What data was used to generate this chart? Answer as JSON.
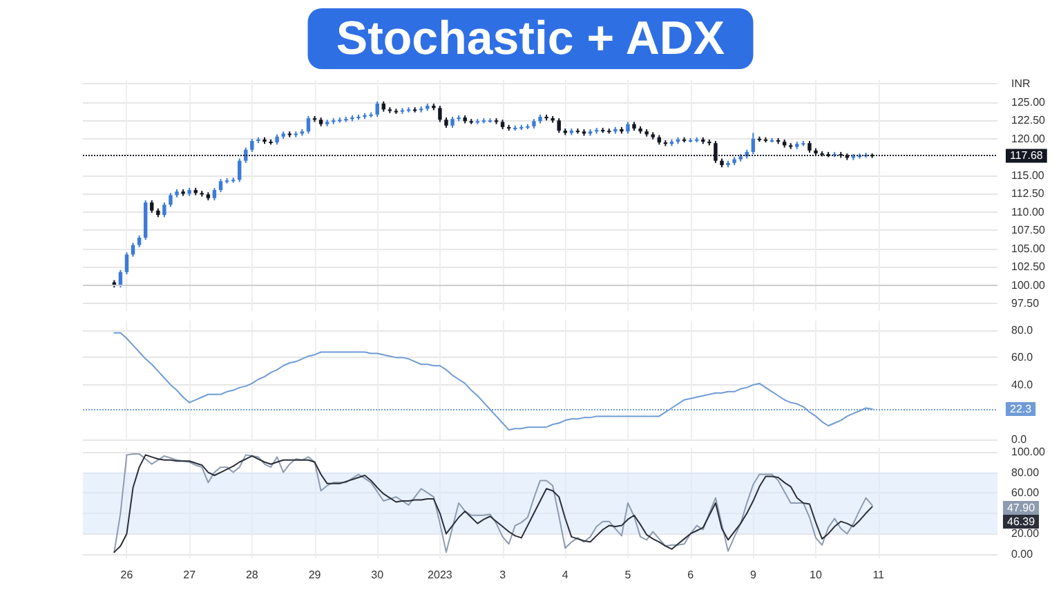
{
  "chart_data": [
    {
      "type": "candlestick",
      "title": "Stochastic + ADX",
      "categories": [
        null,
        null,
        null,
        null,
        null,
        null,
        null,
        "26",
        null,
        null,
        null,
        null,
        null,
        null,
        null,
        null,
        null,
        "27",
        null,
        null,
        null,
        null,
        null,
        null,
        null,
        null,
        null,
        "28",
        null,
        null,
        null,
        null,
        null,
        null,
        null,
        null,
        null,
        "29",
        null,
        null,
        null,
        null,
        null,
        null,
        null,
        null,
        null,
        "30",
        null,
        null,
        null,
        null,
        null,
        null,
        null,
        null,
        null,
        "2023",
        null,
        null,
        null,
        null,
        null,
        null,
        null,
        null,
        null,
        "3",
        null,
        null,
        null,
        null,
        null,
        null,
        null,
        null,
        null,
        "4",
        null,
        null,
        null,
        null,
        null,
        null,
        null,
        null,
        null,
        "5",
        null,
        null,
        null,
        null,
        null,
        null,
        null,
        null,
        null,
        "6",
        null,
        null,
        null,
        null,
        null,
        null,
        null,
        null,
        null,
        "9",
        null,
        null,
        null,
        null,
        null,
        null,
        null,
        null,
        null,
        "10",
        null,
        null,
        null,
        null,
        null,
        null,
        null,
        null,
        null,
        "11",
        null,
        null,
        null,
        null,
        null,
        null,
        null,
        null,
        null,
        null,
        null,
        null,
        null,
        null,
        null,
        null,
        null,
        null,
        null
      ],
      "ohlc": [
        null,
        null,
        null,
        null,
        null,
        [
          100.4,
          100.7,
          99.7,
          100.0
        ],
        [
          100.0,
          102.1,
          99.7,
          101.8
        ],
        [
          101.8,
          104.5,
          101.5,
          104.2
        ],
        [
          104.2,
          105.8,
          103.9,
          105.5
        ],
        [
          105.5,
          106.8,
          105.2,
          106.5
        ],
        [
          106.5,
          111.6,
          106.2,
          111.3
        ],
        [
          111.3,
          111.6,
          109.9,
          110.2
        ],
        [
          110.2,
          110.5,
          109.3,
          109.6
        ],
        [
          109.6,
          111.3,
          109.3,
          111.0
        ],
        [
          111.0,
          112.6,
          110.7,
          112.3
        ],
        [
          112.3,
          113.1,
          112.0,
          112.8
        ],
        [
          112.8,
          113.1,
          112.2,
          112.5
        ],
        [
          112.5,
          113.3,
          112.2,
          113.0
        ],
        [
          113.0,
          113.3,
          112.3,
          112.6
        ],
        [
          112.6,
          112.9,
          112.1,
          112.4
        ],
        [
          112.4,
          112.7,
          111.6,
          111.9
        ],
        [
          111.9,
          113.3,
          111.6,
          113.0
        ],
        [
          113.0,
          114.5,
          112.7,
          114.2
        ],
        [
          114.2,
          114.6,
          113.9,
          114.3
        ],
        [
          114.3,
          114.7,
          114.0,
          114.4
        ],
        [
          114.4,
          117.3,
          114.1,
          117.0
        ],
        [
          117.0,
          118.8,
          116.7,
          118.5
        ],
        [
          118.5,
          120.0,
          118.2,
          119.7
        ],
        [
          119.7,
          120.2,
          119.4,
          119.9
        ],
        [
          119.9,
          120.2,
          119.3,
          119.6
        ],
        [
          119.6,
          119.9,
          119.2,
          119.5
        ],
        [
          119.5,
          120.6,
          119.2,
          120.3
        ],
        [
          120.3,
          121.0,
          120.0,
          120.7
        ],
        [
          120.7,
          121.0,
          120.2,
          120.5
        ],
        [
          120.5,
          121.0,
          120.2,
          120.7
        ],
        [
          120.7,
          121.3,
          120.4,
          121.0
        ],
        [
          121.0,
          123.1,
          120.7,
          122.8
        ],
        [
          122.8,
          123.1,
          122.3,
          122.6
        ],
        [
          122.6,
          122.9,
          121.7,
          122.0
        ],
        [
          122.0,
          122.6,
          121.7,
          122.3
        ],
        [
          122.3,
          122.8,
          122.0,
          122.5
        ],
        [
          122.5,
          122.9,
          122.2,
          122.6
        ],
        [
          122.6,
          123.0,
          122.3,
          122.7
        ],
        [
          122.7,
          123.2,
          122.4,
          122.9
        ],
        [
          122.9,
          123.3,
          122.6,
          123.0
        ],
        [
          123.0,
          123.5,
          122.7,
          123.2
        ],
        [
          123.2,
          123.6,
          122.9,
          123.3
        ],
        [
          123.3,
          125.1,
          123.0,
          124.8
        ],
        [
          124.8,
          125.1,
          123.7,
          124.0
        ],
        [
          124.0,
          124.3,
          123.5,
          123.8
        ],
        [
          123.8,
          124.1,
          123.4,
          123.7
        ],
        [
          123.7,
          124.2,
          123.4,
          123.9
        ],
        [
          123.9,
          124.3,
          123.6,
          124.0
        ],
        [
          124.0,
          124.3,
          123.6,
          123.9
        ],
        [
          123.9,
          124.4,
          123.6,
          124.1
        ],
        [
          124.1,
          124.8,
          123.8,
          124.5
        ],
        [
          124.5,
          124.8,
          123.9,
          124.2
        ],
        [
          124.2,
          124.5,
          122.3,
          122.6
        ],
        [
          122.6,
          122.9,
          121.5,
          121.8
        ],
        [
          121.8,
          123.0,
          121.5,
          122.7
        ],
        [
          122.7,
          123.2,
          122.4,
          122.9
        ],
        [
          122.9,
          123.2,
          122.1,
          122.4
        ],
        [
          122.4,
          122.7,
          122.0,
          122.3
        ],
        [
          122.3,
          122.7,
          122.0,
          122.4
        ],
        [
          122.4,
          122.8,
          122.1,
          122.5
        ],
        [
          122.5,
          122.8,
          122.2,
          122.5
        ],
        [
          122.5,
          122.8,
          122.0,
          122.3
        ],
        [
          122.3,
          122.6,
          121.3,
          121.6
        ],
        [
          121.6,
          121.9,
          121.1,
          121.4
        ],
        [
          121.4,
          121.8,
          121.1,
          121.5
        ],
        [
          121.5,
          121.9,
          121.2,
          121.6
        ],
        [
          121.6,
          122.0,
          121.3,
          121.7
        ],
        [
          121.7,
          122.7,
          121.4,
          122.4
        ],
        [
          122.4,
          123.3,
          122.1,
          123.0
        ],
        [
          123.0,
          123.3,
          122.5,
          122.8
        ],
        [
          122.8,
          123.1,
          122.2,
          122.5
        ],
        [
          122.5,
          122.8,
          120.8,
          121.1
        ],
        [
          121.1,
          121.4,
          120.5,
          120.8
        ],
        [
          120.8,
          121.4,
          120.5,
          121.1
        ],
        [
          121.1,
          121.4,
          120.7,
          121.0
        ],
        [
          121.0,
          121.3,
          120.4,
          120.7
        ],
        [
          120.7,
          121.3,
          120.4,
          121.0
        ],
        [
          121.0,
          121.5,
          120.7,
          121.2
        ],
        [
          121.2,
          121.5,
          120.8,
          121.1
        ],
        [
          121.1,
          121.4,
          120.7,
          121.0
        ],
        [
          121.0,
          121.6,
          120.7,
          121.3
        ],
        [
          121.3,
          121.6,
          120.7,
          121.0
        ],
        [
          121.0,
          122.3,
          120.7,
          122.0
        ],
        [
          122.0,
          122.3,
          121.1,
          121.4
        ],
        [
          121.4,
          121.7,
          120.7,
          121.0
        ],
        [
          121.0,
          121.3,
          120.3,
          120.6
        ],
        [
          120.6,
          120.9,
          119.9,
          120.2
        ],
        [
          120.2,
          120.5,
          119.2,
          119.5
        ],
        [
          119.5,
          119.8,
          119.0,
          119.3
        ],
        [
          119.3,
          119.9,
          119.0,
          119.6
        ],
        [
          119.6,
          120.2,
          119.3,
          119.9
        ],
        [
          119.9,
          120.2,
          119.5,
          119.8
        ],
        [
          119.8,
          120.1,
          119.5,
          119.8
        ],
        [
          119.8,
          120.2,
          119.5,
          119.9
        ],
        [
          119.9,
          120.2,
          119.3,
          119.6
        ],
        [
          119.6,
          119.9,
          119.1,
          119.4
        ],
        [
          119.4,
          119.7,
          116.7,
          117.0
        ],
        [
          117.0,
          117.3,
          116.1,
          116.4
        ],
        [
          116.4,
          117.0,
          116.1,
          116.7
        ],
        [
          116.7,
          117.5,
          116.4,
          117.2
        ],
        [
          117.2,
          117.9,
          116.9,
          117.6
        ],
        [
          117.6,
          118.5,
          117.3,
          118.2
        ],
        [
          118.2,
          120.8,
          117.9,
          120.0
        ],
        [
          120.0,
          120.3,
          119.6,
          119.9
        ],
        [
          119.9,
          120.2,
          119.5,
          119.8
        ],
        [
          119.8,
          120.1,
          119.5,
          119.8
        ],
        [
          119.8,
          120.1,
          119.3,
          119.6
        ],
        [
          119.6,
          119.9,
          118.8,
          119.1
        ],
        [
          119.1,
          119.4,
          118.6,
          118.9
        ],
        [
          118.9,
          119.6,
          118.6,
          119.3
        ],
        [
          119.3,
          119.7,
          119.0,
          119.4
        ],
        [
          119.4,
          119.7,
          118.1,
          118.4
        ],
        [
          118.4,
          118.7,
          117.7,
          118.0
        ],
        [
          118.0,
          118.3,
          117.6,
          117.9
        ],
        [
          117.9,
          118.2,
          117.5,
          117.8
        ],
        [
          117.8,
          118.2,
          117.5,
          117.9
        ],
        [
          117.9,
          118.2,
          117.4,
          117.7
        ],
        [
          117.7,
          118.0,
          117.1,
          117.4
        ],
        [
          117.4,
          117.9,
          117.1,
          117.6
        ],
        [
          117.6,
          118.0,
          117.3,
          117.7
        ],
        [
          117.7,
          118.1,
          117.4,
          117.8
        ],
        [
          117.8,
          118.0,
          117.38,
          117.68
        ],
        null,
        null,
        null,
        null,
        null,
        null,
        null,
        null,
        null,
        null,
        null,
        null,
        null,
        null,
        null,
        null,
        null,
        null,
        null,
        null
      ],
      "colors": [
        null,
        null,
        null,
        null,
        null,
        "#131722",
        "#3d7bd9",
        "#3d7bd9",
        "#3d7bd9",
        "#3d7bd9",
        "#3d7bd9",
        "#131722",
        "#131722",
        "#3d7bd9",
        "#3d7bd9",
        "#3d7bd9",
        "#131722",
        "#3d7bd9",
        "#131722",
        "#131722",
        "#131722",
        "#3d7bd9",
        "#3d7bd9",
        "#3d7bd9",
        "#3d7bd9",
        "#3d7bd9",
        "#3d7bd9",
        "#3d7bd9",
        "#3d7bd9",
        "#131722",
        "#131722",
        "#3d7bd9",
        "#3d7bd9",
        "#131722",
        "#3d7bd9",
        "#3d7bd9",
        "#3d7bd9",
        "#131722",
        "#131722",
        "#3d7bd9",
        "#3d7bd9",
        "#3d7bd9",
        "#3d7bd9",
        "#3d7bd9",
        "#3d7bd9",
        "#3d7bd9",
        "#3d7bd9",
        "#3d7bd9",
        "#131722",
        "#131722",
        "#131722",
        "#3d7bd9",
        "#3d7bd9",
        "#131722",
        "#3d7bd9",
        "#3d7bd9",
        "#131722",
        "#131722",
        "#131722",
        "#3d7bd9",
        "#3d7bd9",
        "#131722",
        "#131722",
        "#3d7bd9",
        "#3d7bd9",
        "#3d7bd9",
        "#131722",
        "#131722",
        "#131722",
        "#3d7bd9",
        "#3d7bd9",
        "#3d7bd9",
        "#3d7bd9",
        "#3d7bd9",
        "#131722",
        "#131722",
        "#131722",
        "#131722",
        "#3d7bd9",
        "#131722",
        "#131722",
        "#3d7bd9",
        "#3d7bd9",
        "#131722",
        "#131722",
        "#3d7bd9",
        "#131722",
        "#3d7bd9",
        "#131722",
        "#131722",
        "#131722",
        "#131722",
        "#131722",
        "#131722",
        "#3d7bd9",
        "#3d7bd9",
        "#131722",
        "#3d7bd9",
        "#3d7bd9",
        "#131722",
        "#131722",
        "#131722",
        "#131722",
        "#3d7bd9",
        "#3d7bd9",
        "#3d7bd9",
        "#3d7bd9",
        "#3d7bd9",
        "#131722",
        "#131722",
        "#3d7bd9",
        "#131722",
        "#131722",
        "#131722",
        "#3d7bd9",
        "#3d7bd9",
        "#131722",
        "#131722",
        "#131722",
        "#131722",
        "#3d7bd9",
        "#131722",
        "#131722",
        "#3d7bd9",
        "#3d7bd9",
        "#3d7bd9",
        "#131722",
        null,
        null,
        null,
        null,
        null,
        null,
        null,
        null,
        null,
        null,
        null,
        null,
        null,
        null,
        null,
        null,
        null,
        null,
        null,
        null
      ],
      "ylim": [
        96.5,
        128
      ],
      "yticks": [
        {
          "value": 97.5,
          "label": "97.50"
        },
        {
          "value": 100,
          "label": "100.00"
        },
        {
          "value": 102.5,
          "label": "102.50"
        },
        {
          "value": 105,
          "label": "105.00"
        },
        {
          "value": 107.5,
          "label": "107.50"
        },
        {
          "value": 110,
          "label": "110.00"
        },
        {
          "value": 112.5,
          "label": "112.50"
        },
        {
          "value": 115,
          "label": "115.00"
        },
        {
          "value": 120,
          "label": "120.00"
        },
        {
          "value": 122.5,
          "label": "122.50"
        },
        {
          "value": 125,
          "label": "125.00"
        },
        {
          "value": 127.5,
          "label": "INR"
        }
      ],
      "ref_lines": [
        {
          "axis": "y",
          "value": 100,
          "color": "#cccccc",
          "line_style": "solid"
        },
        {
          "axis": "y",
          "value": 117.68,
          "label": "117.68",
          "color": "#131722",
          "line_style": "dotted"
        }
      ],
      "grid": true,
      "tick_labels": "y"
    },
    {
      "type": "line",
      "categories": [
        null,
        null,
        null,
        null,
        null,
        null,
        null,
        "26",
        null,
        null,
        null,
        null,
        null,
        null,
        null,
        null,
        null,
        "27",
        null,
        null,
        null,
        null,
        null,
        null,
        null,
        null,
        null,
        "28",
        null,
        null,
        null,
        null,
        null,
        null,
        null,
        null,
        null,
        "29",
        null,
        null,
        null,
        null,
        null,
        null,
        null,
        null,
        null,
        "30",
        null,
        null,
        null,
        null,
        null,
        null,
        null,
        null,
        null,
        "2023",
        null,
        null,
        null,
        null,
        null,
        null,
        null,
        null,
        null,
        "3",
        null,
        null,
        null,
        null,
        null,
        null,
        null,
        null,
        null,
        "4",
        null,
        null,
        null,
        null,
        null,
        null,
        null,
        null,
        null,
        "5",
        null,
        null,
        null,
        null,
        null,
        null,
        null,
        null,
        null,
        "6",
        null,
        null,
        null,
        null,
        null,
        null,
        null,
        null,
        null,
        "9",
        null,
        null,
        null,
        null,
        null,
        null,
        null,
        null,
        null,
        "10",
        null,
        null,
        null,
        null,
        null,
        null,
        null,
        null,
        null,
        "11",
        null,
        null,
        null,
        null,
        null,
        null,
        null,
        null,
        null,
        null,
        null,
        null,
        null,
        null,
        null,
        null,
        null,
        null,
        null
      ],
      "values": [
        null,
        null,
        null,
        null,
        null,
        78,
        78,
        74,
        69,
        64,
        59,
        55,
        50,
        45,
        40,
        36,
        31,
        27,
        29,
        31,
        33,
        33,
        33,
        35,
        36,
        38,
        39,
        41,
        44,
        46,
        49,
        51,
        54,
        56,
        57,
        59,
        61,
        62,
        64,
        64,
        64,
        64,
        64,
        64,
        64,
        64,
        63,
        63,
        62,
        61,
        60,
        60,
        59,
        57,
        55,
        55,
        54,
        54,
        51,
        47,
        44,
        41,
        36,
        32,
        27,
        22,
        17,
        12,
        7,
        8,
        8,
        9,
        9,
        9,
        9,
        11,
        12,
        14,
        15,
        15,
        16,
        16,
        17,
        17,
        17,
        17,
        17,
        17,
        17,
        17,
        17,
        17,
        17,
        20,
        23,
        26,
        29,
        30,
        31,
        32,
        33,
        34,
        34,
        35,
        35,
        37,
        38,
        40,
        41,
        38,
        35,
        32,
        29,
        27,
        26,
        24,
        20,
        17,
        13,
        10,
        12,
        14,
        17,
        19,
        21,
        23,
        22.3,
        null,
        null,
        null,
        null,
        null,
        null,
        null,
        null,
        null,
        null,
        null,
        null,
        null,
        null,
        null,
        null,
        null,
        null,
        null,
        null
      ],
      "color": "#6f9bd6",
      "marker": "none",
      "line_style": "solid",
      "ylim": [
        0,
        87
      ],
      "yticks": [
        {
          "value": 0,
          "label": "0.0"
        },
        {
          "value": 40,
          "label": "40.0"
        },
        {
          "value": 60,
          "label": "60.0"
        },
        {
          "value": 80,
          "label": "80.0"
        }
      ],
      "ref_lines": [
        {
          "axis": "y",
          "value": 22.3,
          "label": "22.3",
          "color": "#6f9bd6",
          "line_style": "dotted"
        }
      ],
      "grid": true,
      "tick_labels": "y"
    },
    {
      "type": "line",
      "categories": [
        null,
        null,
        null,
        null,
        null,
        null,
        null,
        "26",
        null,
        null,
        null,
        null,
        null,
        null,
        null,
        null,
        null,
        "27",
        null,
        null,
        null,
        null,
        null,
        null,
        null,
        null,
        null,
        "28",
        null,
        null,
        null,
        null,
        null,
        null,
        null,
        null,
        null,
        "29",
        null,
        null,
        null,
        null,
        null,
        null,
        null,
        null,
        null,
        "30",
        null,
        null,
        null,
        null,
        null,
        null,
        null,
        null,
        null,
        "2023",
        null,
        null,
        null,
        null,
        null,
        null,
        null,
        null,
        null,
        "3",
        null,
        null,
        null,
        null,
        null,
        null,
        null,
        null,
        null,
        "4",
        null,
        null,
        null,
        null,
        null,
        null,
        null,
        null,
        null,
        "5",
        null,
        null,
        null,
        null,
        null,
        null,
        null,
        null,
        null,
        "6",
        null,
        null,
        null,
        null,
        null,
        null,
        null,
        null,
        null,
        "9",
        null,
        null,
        null,
        null,
        null,
        null,
        null,
        null,
        null,
        "10",
        null,
        null,
        null,
        null,
        null,
        null,
        null,
        null,
        null,
        "11",
        null,
        null,
        null,
        null,
        null,
        null,
        null,
        null,
        null,
        null,
        null,
        null,
        null,
        null,
        null,
        null,
        null,
        null,
        null
      ],
      "series": [
        {
          "color": "#8c9bb0",
          "values": [
            null,
            null,
            null,
            null,
            null,
            2,
            40,
            97,
            98,
            98,
            93,
            88,
            92,
            96,
            94,
            92,
            91,
            90,
            87,
            85,
            70,
            80,
            85,
            85,
            80,
            85,
            97,
            96,
            95,
            88,
            85,
            95,
            80,
            88,
            93,
            92,
            95,
            90,
            62,
            67,
            70,
            70,
            70,
            74,
            78,
            74,
            70,
            61,
            52,
            54,
            56,
            52,
            48,
            56,
            64,
            60,
            56,
            30,
            2,
            26,
            50,
            42,
            38,
            38,
            38,
            39,
            30,
            17,
            10,
            28,
            31,
            36,
            55,
            72,
            72,
            67,
            37,
            6,
            12,
            16,
            12,
            17,
            27,
            32,
            32,
            25,
            18,
            50,
            37,
            17,
            14,
            22,
            15,
            8,
            9,
            9,
            10,
            20,
            28,
            24,
            40,
            55,
            29,
            3,
            17,
            30,
            50,
            68,
            78,
            78,
            78,
            72,
            61,
            50,
            50,
            50,
            36,
            16,
            9,
            26,
            35,
            25,
            20,
            30,
            43,
            55,
            47.9,
            null,
            null,
            null,
            null,
            null,
            null,
            null,
            null,
            null,
            null,
            null,
            null,
            null,
            null,
            null,
            null,
            null,
            null,
            null,
            null
          ]
        },
        {
          "color": "#2a2e39",
          "values": [
            null,
            null,
            null,
            null,
            null,
            2,
            8,
            20,
            65,
            85,
            97,
            95,
            93,
            92,
            92,
            91,
            91,
            91,
            89,
            87,
            80,
            77,
            80,
            83,
            86,
            90,
            93,
            96,
            93,
            90,
            88,
            90,
            92,
            92,
            92,
            92,
            92,
            90,
            78,
            69,
            69,
            69,
            71,
            73,
            75,
            77,
            72,
            65,
            59,
            55,
            51,
            52,
            52,
            53,
            53,
            54,
            54,
            40,
            20,
            28,
            36,
            42,
            36,
            30,
            34,
            37,
            32,
            27,
            22,
            18,
            16,
            28,
            40,
            52,
            64,
            62,
            56,
            35,
            17,
            15,
            13,
            12,
            18,
            24,
            28,
            27,
            28,
            34,
            38,
            29,
            19,
            15,
            12,
            8,
            5,
            10,
            15,
            20,
            23,
            26,
            38,
            50,
            25,
            14,
            22,
            30,
            40,
            52,
            66,
            76,
            76,
            75,
            70,
            66,
            55,
            50,
            49,
            31,
            15,
            20,
            27,
            32,
            30,
            27,
            33,
            40,
            46.39,
            null,
            null,
            null,
            null,
            null,
            null,
            null,
            null,
            null,
            null,
            null,
            null,
            null,
            null,
            null,
            null,
            null,
            null,
            null,
            null
          ]
        }
      ],
      "marker": "none",
      "line_style": "solid",
      "ylim": [
        -4,
        104
      ],
      "yticks": [
        {
          "value": 0,
          "label": "0.00"
        },
        {
          "value": 20,
          "label": "20.00"
        },
        {
          "value": 40,
          "label": null
        },
        {
          "value": 60,
          "label": "60.00"
        },
        {
          "value": 80,
          "label": "80.00"
        },
        {
          "value": 100,
          "label": "100.00"
        }
      ],
      "bands": [
        {
          "axis": "y",
          "from": 20,
          "to": 80,
          "color": "#dbe8fb"
        }
      ],
      "annotations": [
        "47.90",
        "46.39"
      ],
      "grid": true
    }
  ]
}
